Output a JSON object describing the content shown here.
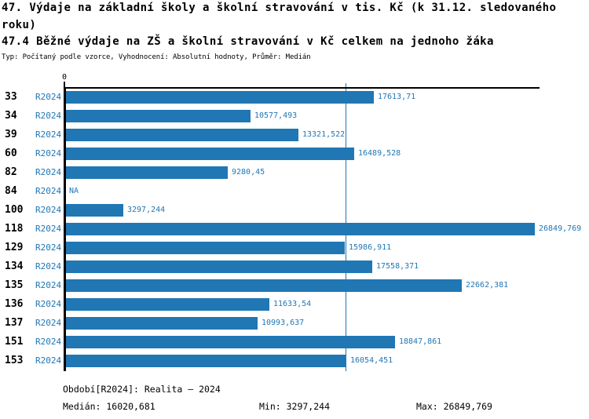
{
  "header": {
    "title_line1": "47. Výdaje na základní školy a školní stravování v tis. Kč (k 31.12. sledovaného",
    "title_line2": "roku)",
    "subtitle": "47.4 Běžné výdaje na ZŠ a školní stravování v Kč celkem na jednoho žáka",
    "meta": "Typ: Počítaný podle vzorce, Vyhodnocení: Absolutní hodnoty, Průměr: Medián"
  },
  "chart_data": {
    "type": "bar",
    "orientation": "horizontal",
    "title": "47.4 Běžné výdaje na ZŠ a školní stravování v Kč celkem na jednoho žáka",
    "series_name": "R2024",
    "axis": {
      "zero_label": "0",
      "x_min": 0,
      "x_max_render": 27120,
      "grid": false
    },
    "categories": [
      "33",
      "34",
      "39",
      "60",
      "82",
      "84",
      "100",
      "118",
      "129",
      "134",
      "135",
      "136",
      "137",
      "151",
      "153"
    ],
    "rows": [
      {
        "code": "33",
        "period": "R2024",
        "value": 17613.71,
        "label": "17613,71"
      },
      {
        "code": "34",
        "period": "R2024",
        "value": 10577.493,
        "label": "10577,493"
      },
      {
        "code": "39",
        "period": "R2024",
        "value": 13321.522,
        "label": "13321,522"
      },
      {
        "code": "60",
        "period": "R2024",
        "value": 16489.528,
        "label": "16489,528"
      },
      {
        "code": "82",
        "period": "R2024",
        "value": 9280.45,
        "label": "9280,45"
      },
      {
        "code": "84",
        "period": "R2024",
        "value": null,
        "label": "NA"
      },
      {
        "code": "100",
        "period": "R2024",
        "value": 3297.244,
        "label": "3297,244"
      },
      {
        "code": "118",
        "period": "R2024",
        "value": 26849.769,
        "label": "26849,769"
      },
      {
        "code": "129",
        "period": "R2024",
        "value": 15986.911,
        "label": "15986,911"
      },
      {
        "code": "134",
        "period": "R2024",
        "value": 17558.371,
        "label": "17558,371"
      },
      {
        "code": "135",
        "period": "R2024",
        "value": 22662.381,
        "label": "22662,381"
      },
      {
        "code": "136",
        "period": "R2024",
        "value": 11633.54,
        "label": "11633,54"
      },
      {
        "code": "137",
        "period": "R2024",
        "value": 10993.637,
        "label": "10993,637"
      },
      {
        "code": "151",
        "period": "R2024",
        "value": 18847.861,
        "label": "18847,861"
      },
      {
        "code": "153",
        "period": "R2024",
        "value": 16054.451,
        "label": "16054,451"
      }
    ],
    "median_value": 16020.681,
    "min_value": 3297.244,
    "max_value": 26849.769,
    "colors": {
      "bar": "#2077B4",
      "median_line": "#2077B4",
      "accent_text": "#2077B4",
      "axis": "#000000"
    }
  },
  "footer": {
    "period_info": "Období[R2024]: Realita – 2024",
    "median": "Medián: 16020,681",
    "min": "Min: 3297,244",
    "max": "Max: 26849,769"
  }
}
